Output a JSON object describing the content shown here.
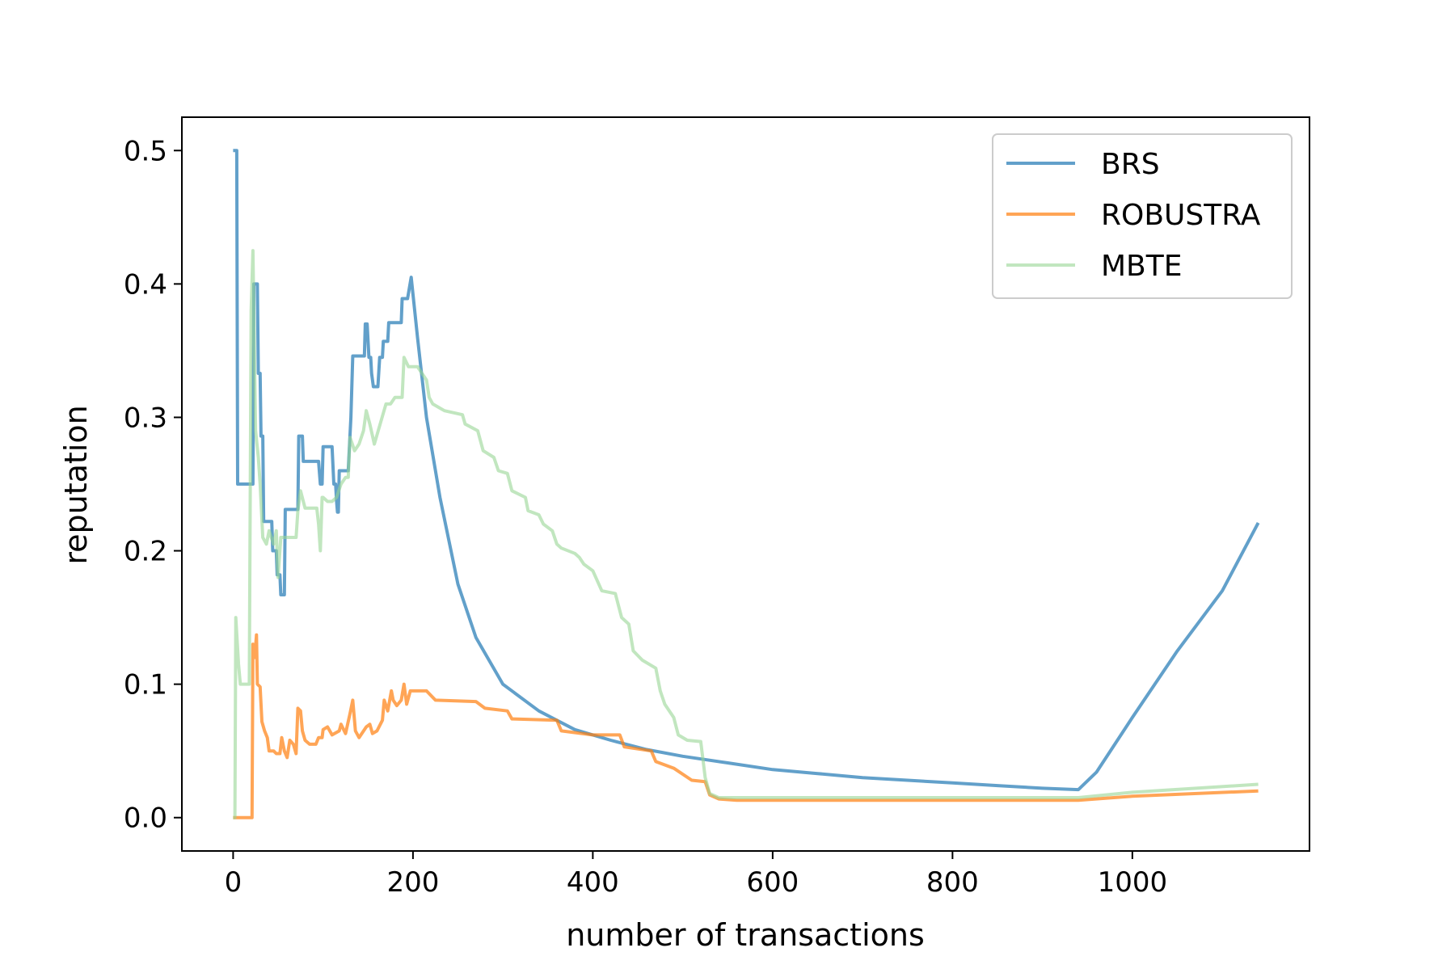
{
  "chart_data": {
    "type": "line",
    "title": "",
    "xlabel": "number of transactions",
    "ylabel": "reputation",
    "xlim": [
      -57,
      1197
    ],
    "ylim": [
      -0.025,
      0.525
    ],
    "xticks": [
      0,
      200,
      400,
      600,
      800,
      1000
    ],
    "xtick_labels": [
      "0",
      "200",
      "400",
      "600",
      "800",
      "1000"
    ],
    "yticks": [
      0.0,
      0.1,
      0.2,
      0.3,
      0.4,
      0.5
    ],
    "ytick_labels": [
      "0.0",
      "0.1",
      "0.2",
      "0.3",
      "0.4",
      "0.5"
    ],
    "grid": false,
    "legend_position": "top-right",
    "series": [
      {
        "name": "BRS",
        "color": "#1f77b4",
        "points": [
          [
            0,
            0.5
          ],
          [
            4,
            0.5
          ],
          [
            5,
            0.25
          ],
          [
            22,
            0.25
          ],
          [
            23,
            0.4
          ],
          [
            27,
            0.4
          ],
          [
            28,
            0.333
          ],
          [
            30,
            0.333
          ],
          [
            31,
            0.286
          ],
          [
            33,
            0.286
          ],
          [
            34,
            0.222
          ],
          [
            43,
            0.222
          ],
          [
            44,
            0.2
          ],
          [
            48,
            0.2
          ],
          [
            49,
            0.182
          ],
          [
            52,
            0.182
          ],
          [
            53,
            0.167
          ],
          [
            57,
            0.167
          ],
          [
            58,
            0.231
          ],
          [
            72,
            0.231
          ],
          [
            73,
            0.286
          ],
          [
            77,
            0.286
          ],
          [
            78,
            0.267
          ],
          [
            95,
            0.267
          ],
          [
            97,
            0.25
          ],
          [
            99,
            0.25
          ],
          [
            100,
            0.278
          ],
          [
            110,
            0.278
          ],
          [
            112,
            0.25
          ],
          [
            114,
            0.25
          ],
          [
            115,
            0.238
          ],
          [
            116,
            0.229
          ],
          [
            117,
            0.229
          ],
          [
            118,
            0.26
          ],
          [
            128,
            0.26
          ],
          [
            131,
            0.3
          ],
          [
            133,
            0.346
          ],
          [
            146,
            0.346
          ],
          [
            147,
            0.37
          ],
          [
            149,
            0.37
          ],
          [
            151,
            0.345
          ],
          [
            153,
            0.345
          ],
          [
            154,
            0.333
          ],
          [
            156,
            0.323
          ],
          [
            161,
            0.323
          ],
          [
            163,
            0.345
          ],
          [
            166,
            0.345
          ],
          [
            167,
            0.357
          ],
          [
            172,
            0.357
          ],
          [
            173,
            0.371
          ],
          [
            187,
            0.371
          ],
          [
            188,
            0.389
          ],
          [
            194,
            0.389
          ],
          [
            198,
            0.405
          ],
          [
            205,
            0.36
          ],
          [
            215,
            0.3
          ],
          [
            230,
            0.24
          ],
          [
            250,
            0.175
          ],
          [
            270,
            0.135
          ],
          [
            300,
            0.1
          ],
          [
            340,
            0.08
          ],
          [
            380,
            0.066
          ],
          [
            420,
            0.058
          ],
          [
            460,
            0.051
          ],
          [
            500,
            0.046
          ],
          [
            550,
            0.041
          ],
          [
            600,
            0.036
          ],
          [
            650,
            0.033
          ],
          [
            700,
            0.03
          ],
          [
            750,
            0.028
          ],
          [
            800,
            0.026
          ],
          [
            850,
            0.024
          ],
          [
            900,
            0.022
          ],
          [
            940,
            0.021
          ],
          [
            960,
            0.034
          ],
          [
            1000,
            0.075
          ],
          [
            1050,
            0.125
          ],
          [
            1100,
            0.17
          ],
          [
            1140,
            0.221
          ]
        ]
      },
      {
        "name": "ROBUSTRA",
        "color": "#ff7f0e",
        "points": [
          [
            0,
            0
          ],
          [
            21,
            0
          ],
          [
            22,
            0.13
          ],
          [
            24,
            0.12
          ],
          [
            26,
            0.137
          ],
          [
            27,
            0.1
          ],
          [
            30,
            0.098
          ],
          [
            32,
            0.072
          ],
          [
            35,
            0.065
          ],
          [
            38,
            0.06
          ],
          [
            40,
            0.05
          ],
          [
            45,
            0.05
          ],
          [
            48,
            0.048
          ],
          [
            52,
            0.048
          ],
          [
            54,
            0.06
          ],
          [
            57,
            0.05
          ],
          [
            60,
            0.045
          ],
          [
            63,
            0.058
          ],
          [
            67,
            0.055
          ],
          [
            70,
            0.048
          ],
          [
            72,
            0.082
          ],
          [
            75,
            0.08
          ],
          [
            77,
            0.065
          ],
          [
            80,
            0.058
          ],
          [
            85,
            0.055
          ],
          [
            92,
            0.055
          ],
          [
            95,
            0.06
          ],
          [
            99,
            0.06
          ],
          [
            100,
            0.066
          ],
          [
            105,
            0.068
          ],
          [
            110,
            0.062
          ],
          [
            118,
            0.065
          ],
          [
            120,
            0.07
          ],
          [
            125,
            0.063
          ],
          [
            130,
            0.078
          ],
          [
            133,
            0.088
          ],
          [
            136,
            0.065
          ],
          [
            140,
            0.06
          ],
          [
            148,
            0.068
          ],
          [
            152,
            0.07
          ],
          [
            155,
            0.063
          ],
          [
            160,
            0.065
          ],
          [
            166,
            0.073
          ],
          [
            168,
            0.088
          ],
          [
            172,
            0.08
          ],
          [
            176,
            0.095
          ],
          [
            178,
            0.088
          ],
          [
            182,
            0.084
          ],
          [
            187,
            0.088
          ],
          [
            190,
            0.1
          ],
          [
            193,
            0.085
          ],
          [
            197,
            0.095
          ],
          [
            215,
            0.095
          ],
          [
            225,
            0.088
          ],
          [
            270,
            0.087
          ],
          [
            280,
            0.082
          ],
          [
            305,
            0.08
          ],
          [
            310,
            0.074
          ],
          [
            360,
            0.073
          ],
          [
            365,
            0.065
          ],
          [
            400,
            0.062
          ],
          [
            430,
            0.062
          ],
          [
            435,
            0.053
          ],
          [
            465,
            0.05
          ],
          [
            470,
            0.042
          ],
          [
            490,
            0.037
          ],
          [
            510,
            0.028
          ],
          [
            525,
            0.027
          ],
          [
            530,
            0.017
          ],
          [
            540,
            0.014
          ],
          [
            560,
            0.013
          ],
          [
            700,
            0.013
          ],
          [
            940,
            0.013
          ],
          [
            1000,
            0.016
          ],
          [
            1140,
            0.02
          ]
        ]
      },
      {
        "name": "MBTE",
        "color": "#98d594",
        "points": [
          [
            0,
            0
          ],
          [
            2,
            0
          ],
          [
            3,
            0.15
          ],
          [
            6,
            0.115
          ],
          [
            8,
            0.1
          ],
          [
            18,
            0.1
          ],
          [
            20,
            0.38
          ],
          [
            22,
            0.425
          ],
          [
            25,
            0.29
          ],
          [
            28,
            0.27
          ],
          [
            30,
            0.25
          ],
          [
            33,
            0.21
          ],
          [
            37,
            0.205
          ],
          [
            40,
            0.215
          ],
          [
            45,
            0.205
          ],
          [
            48,
            0.215
          ],
          [
            50,
            0.18
          ],
          [
            53,
            0.21
          ],
          [
            70,
            0.21
          ],
          [
            72,
            0.23
          ],
          [
            75,
            0.245
          ],
          [
            80,
            0.232
          ],
          [
            85,
            0.232
          ],
          [
            93,
            0.232
          ],
          [
            95,
            0.22
          ],
          [
            97,
            0.2
          ],
          [
            99,
            0.24
          ],
          [
            100,
            0.24
          ],
          [
            105,
            0.237
          ],
          [
            110,
            0.237
          ],
          [
            115,
            0.24
          ],
          [
            120,
            0.25
          ],
          [
            125,
            0.255
          ],
          [
            128,
            0.255
          ],
          [
            130,
            0.285
          ],
          [
            135,
            0.275
          ],
          [
            140,
            0.28
          ],
          [
            145,
            0.29
          ],
          [
            148,
            0.305
          ],
          [
            152,
            0.295
          ],
          [
            157,
            0.28
          ],
          [
            170,
            0.31
          ],
          [
            175,
            0.31
          ],
          [
            180,
            0.315
          ],
          [
            188,
            0.315
          ],
          [
            190,
            0.345
          ],
          [
            195,
            0.338
          ],
          [
            205,
            0.338
          ],
          [
            215,
            0.328
          ],
          [
            218,
            0.315
          ],
          [
            222,
            0.31
          ],
          [
            235,
            0.305
          ],
          [
            255,
            0.302
          ],
          [
            258,
            0.295
          ],
          [
            272,
            0.29
          ],
          [
            278,
            0.275
          ],
          [
            290,
            0.27
          ],
          [
            295,
            0.26
          ],
          [
            305,
            0.258
          ],
          [
            310,
            0.245
          ],
          [
            325,
            0.24
          ],
          [
            328,
            0.23
          ],
          [
            340,
            0.227
          ],
          [
            345,
            0.22
          ],
          [
            355,
            0.215
          ],
          [
            360,
            0.205
          ],
          [
            365,
            0.202
          ],
          [
            380,
            0.198
          ],
          [
            385,
            0.195
          ],
          [
            390,
            0.19
          ],
          [
            400,
            0.185
          ],
          [
            410,
            0.17
          ],
          [
            425,
            0.168
          ],
          [
            432,
            0.15
          ],
          [
            440,
            0.145
          ],
          [
            445,
            0.125
          ],
          [
            455,
            0.118
          ],
          [
            470,
            0.112
          ],
          [
            475,
            0.095
          ],
          [
            480,
            0.085
          ],
          [
            490,
            0.075
          ],
          [
            495,
            0.062
          ],
          [
            505,
            0.058
          ],
          [
            520,
            0.057
          ],
          [
            525,
            0.03
          ],
          [
            530,
            0.018
          ],
          [
            540,
            0.015
          ],
          [
            600,
            0.015
          ],
          [
            940,
            0.015
          ],
          [
            1000,
            0.019
          ],
          [
            1140,
            0.025
          ]
        ]
      }
    ]
  }
}
